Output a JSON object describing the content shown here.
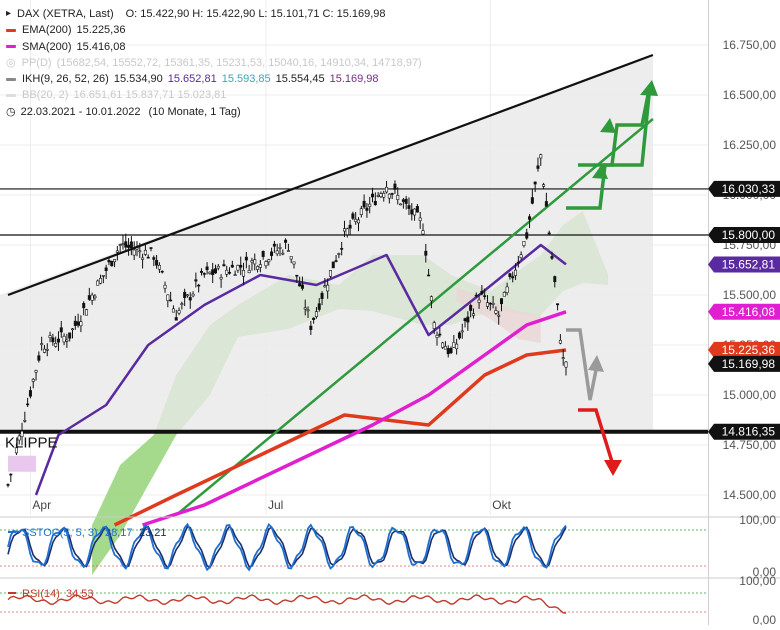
{
  "legend": {
    "title": "DAX (XETRA, Last)",
    "ohlc": "O: 15.422,90  H: 15.422,90  L: 15.101,71  C: 15.169,98",
    "ema": {
      "label": "EMA(200)",
      "value": "15.225,36",
      "color": "#e03a1e"
    },
    "sma": {
      "label": "SMA(200)",
      "value": "15.416,08",
      "color": "#e020d0"
    },
    "pp": {
      "label": "PP(D)",
      "values": "(15682,54, 15552,72, 15361,35, 15231,53, 15040,16, 14910,34, 14718,97)"
    },
    "ikh": {
      "label": "IKH(9, 26, 52, 26)",
      "v1": "15.534,90",
      "v2": "15.652,81",
      "v3": "15.593,85",
      "v4": "15.554,45",
      "v5": "15.169,98"
    },
    "bb": {
      "label": "BB(20, 2)",
      "values": "16.651,61   15.837,71   15.023,81"
    },
    "range": "22.03.2021 - 10.01.2022",
    "period": "(10 Monate, 1 Tag)"
  },
  "annotation": {
    "klippe": "KLIPPE"
  },
  "price_labels": [
    {
      "value": 16030.33,
      "text": "16.030,33",
      "bg": "#111111",
      "fg": "#ffffff"
    },
    {
      "value": 15800.0,
      "text": "15.800,00",
      "bg": "#111111",
      "fg": "#ffffff"
    },
    {
      "value": 15652.81,
      "text": "15.652,81",
      "bg": "#5a2aa0",
      "fg": "#ffffff"
    },
    {
      "value": 15416.08,
      "text": "15.416,08",
      "bg": "#e020d0",
      "fg": "#ffffff"
    },
    {
      "value": 15225.36,
      "text": "15.225,36",
      "bg": "#e03a1e",
      "fg": "#ffffff"
    },
    {
      "value": 15169.98,
      "text": "15.169,98",
      "bg": "#111111",
      "fg": "#ffffff"
    },
    {
      "value": 14816.35,
      "text": "14.816,35",
      "bg": "#111111",
      "fg": "#ffffff"
    }
  ],
  "stoch_legend": {
    "label": "SSTOC(5, 5, 3)",
    "v1": "28,17",
    "v2": "23,21"
  },
  "rsi_legend": {
    "label": "RSI(14)",
    "v1": "34,53"
  },
  "colors": {
    "purple": "#5a2aa0",
    "magenta": "#e020d0",
    "ema": "#e03a1e",
    "green": "#2e9a3c",
    "cloudGreen": "#8fcf6f",
    "cloudRed": "#e88a8a",
    "stoch1": "#1f6fd1",
    "stoch2": "#1a2f6b",
    "rsi": "#c0392b"
  },
  "chart_data": {
    "type": "line",
    "title": "DAX (XETRA, Last)",
    "xlabel": "",
    "ylabel": "",
    "x_ticks": [
      "Apr",
      "Jul",
      "Okt"
    ],
    "y_ticks": [
      14500,
      14750,
      15000,
      15250,
      15500,
      15750,
      16000,
      16250,
      16500,
      16750
    ],
    "y_tick_labels": [
      "14.500,00",
      "14.750,00",
      "15.000,00",
      "15.250,00",
      "15.500,00",
      "15.750,00",
      "16.000,00",
      "16.250,00",
      "16.500,00",
      "16.750,00"
    ],
    "ylim": [
      14400,
      16950
    ],
    "x_range": [
      "22.03.2021",
      "10.01.2022"
    ],
    "n": 200,
    "series": [
      {
        "name": "DAX",
        "x": [
          0,
          12,
          22,
          28,
          40,
          52,
          60,
          70,
          85,
          100,
          108,
          120,
          135,
          148,
          152,
          158,
          168,
          175,
          185,
          190,
          198
        ],
        "values": [
          14550,
          15250,
          15300,
          15450,
          15750,
          15700,
          15400,
          15600,
          15650,
          15750,
          15350,
          15800,
          16050,
          15850,
          15350,
          15200,
          15500,
          15400,
          15800,
          16200,
          15170
        ]
      },
      {
        "name": "EMA(200)",
        "x": [
          38,
          60,
          90,
          120,
          150,
          170,
          185,
          199
        ],
        "values": [
          14350,
          14500,
          14700,
          14900,
          14850,
          15100,
          15200,
          15225
        ]
      },
      {
        "name": "SMA(200)",
        "x": [
          48,
          70,
          100,
          130,
          150,
          170,
          185,
          199
        ],
        "values": [
          14350,
          14450,
          14650,
          14850,
          15000,
          15200,
          15350,
          15416
        ]
      },
      {
        "name": "IKH Kijun",
        "x": [
          10,
          18,
          35,
          50,
          70,
          90,
          110,
          135,
          150,
          168,
          190,
          199
        ],
        "values": [
          14500,
          14800,
          14950,
          15250,
          15450,
          15600,
          15550,
          15700,
          15300,
          15500,
          15750,
          15653
        ]
      }
    ],
    "horizontal_levels": [
      16030.33,
      15800.0,
      14816.35
    ],
    "trendlines": [
      {
        "name": "upper",
        "x": [
          0,
          230
        ],
        "values": [
          15500,
          16700
        ]
      },
      {
        "name": "green-trend",
        "x": [
          60,
          230
        ],
        "values": [
          14400,
          16380
        ]
      }
    ],
    "subcharts": [
      {
        "name": "SSTOC(5, 5, 3)",
        "y_tick_labels": [
          "100,00",
          "0,00"
        ],
        "values": [
          28.17,
          23.21
        ]
      },
      {
        "name": "RSI(14)",
        "y_tick_labels": [
          "100,00",
          "0,00"
        ],
        "values": [
          34.53
        ]
      }
    ]
  }
}
